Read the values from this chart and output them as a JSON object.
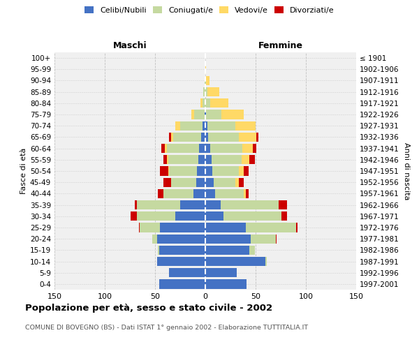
{
  "age_groups": [
    "0-4",
    "5-9",
    "10-14",
    "15-19",
    "20-24",
    "25-29",
    "30-34",
    "35-39",
    "40-44",
    "45-49",
    "50-54",
    "55-59",
    "60-64",
    "65-69",
    "70-74",
    "75-79",
    "80-84",
    "85-89",
    "90-94",
    "95-99",
    "100+"
  ],
  "birth_years": [
    "1997-2001",
    "1992-1996",
    "1987-1991",
    "1982-1986",
    "1977-1981",
    "1972-1976",
    "1967-1971",
    "1962-1966",
    "1957-1961",
    "1952-1956",
    "1947-1951",
    "1942-1946",
    "1937-1941",
    "1932-1936",
    "1927-1931",
    "1922-1926",
    "1917-1921",
    "1912-1916",
    "1907-1911",
    "1902-1906",
    "≤ 1901"
  ],
  "male": {
    "celibi": [
      46,
      36,
      48,
      46,
      48,
      45,
      30,
      25,
      12,
      9,
      8,
      7,
      6,
      4,
      3,
      1,
      0,
      0,
      0,
      0,
      0
    ],
    "coniugati": [
      0,
      0,
      0,
      1,
      5,
      20,
      38,
      43,
      30,
      25,
      28,
      30,
      32,
      28,
      22,
      10,
      3,
      2,
      1,
      0,
      0
    ],
    "vedovi": [
      0,
      0,
      0,
      0,
      0,
      0,
      0,
      0,
      0,
      0,
      1,
      1,
      2,
      2,
      5,
      3,
      2,
      0,
      0,
      0,
      0
    ],
    "divorziati": [
      0,
      0,
      0,
      0,
      0,
      1,
      6,
      2,
      5,
      8,
      8,
      4,
      4,
      2,
      0,
      0,
      0,
      0,
      0,
      0,
      0
    ]
  },
  "female": {
    "nubili": [
      41,
      31,
      60,
      44,
      45,
      40,
      18,
      15,
      10,
      8,
      7,
      6,
      5,
      3,
      2,
      1,
      0,
      0,
      0,
      0,
      0
    ],
    "coniugate": [
      0,
      0,
      1,
      5,
      25,
      50,
      58,
      58,
      28,
      22,
      26,
      30,
      32,
      30,
      28,
      15,
      5,
      2,
      1,
      0,
      0
    ],
    "vedove": [
      0,
      0,
      0,
      0,
      0,
      0,
      0,
      0,
      2,
      3,
      5,
      8,
      10,
      18,
      20,
      22,
      18,
      12,
      3,
      1,
      0
    ],
    "divorziate": [
      0,
      0,
      0,
      0,
      1,
      2,
      5,
      8,
      3,
      5,
      5,
      5,
      4,
      2,
      0,
      0,
      0,
      0,
      0,
      0,
      0
    ]
  },
  "colors": {
    "celibi": "#4472C4",
    "coniugati": "#C5D9A0",
    "vedovi": "#FFD966",
    "divorziati": "#CC0000"
  },
  "xlim": 150,
  "title": "Popolazione per età, sesso e stato civile - 2002",
  "subtitle": "COMUNE DI BOVEGNO (BS) - Dati ISTAT 1° gennaio 2002 - Elaborazione TUTTITALIA.IT",
  "ylabel_left": "Fasce di età",
  "ylabel_right": "Anni di nascita",
  "xlabel_left": "Maschi",
  "xlabel_right": "Femmine",
  "bg_color": "#FFFFFF",
  "plot_bg": "#F0F0F0"
}
